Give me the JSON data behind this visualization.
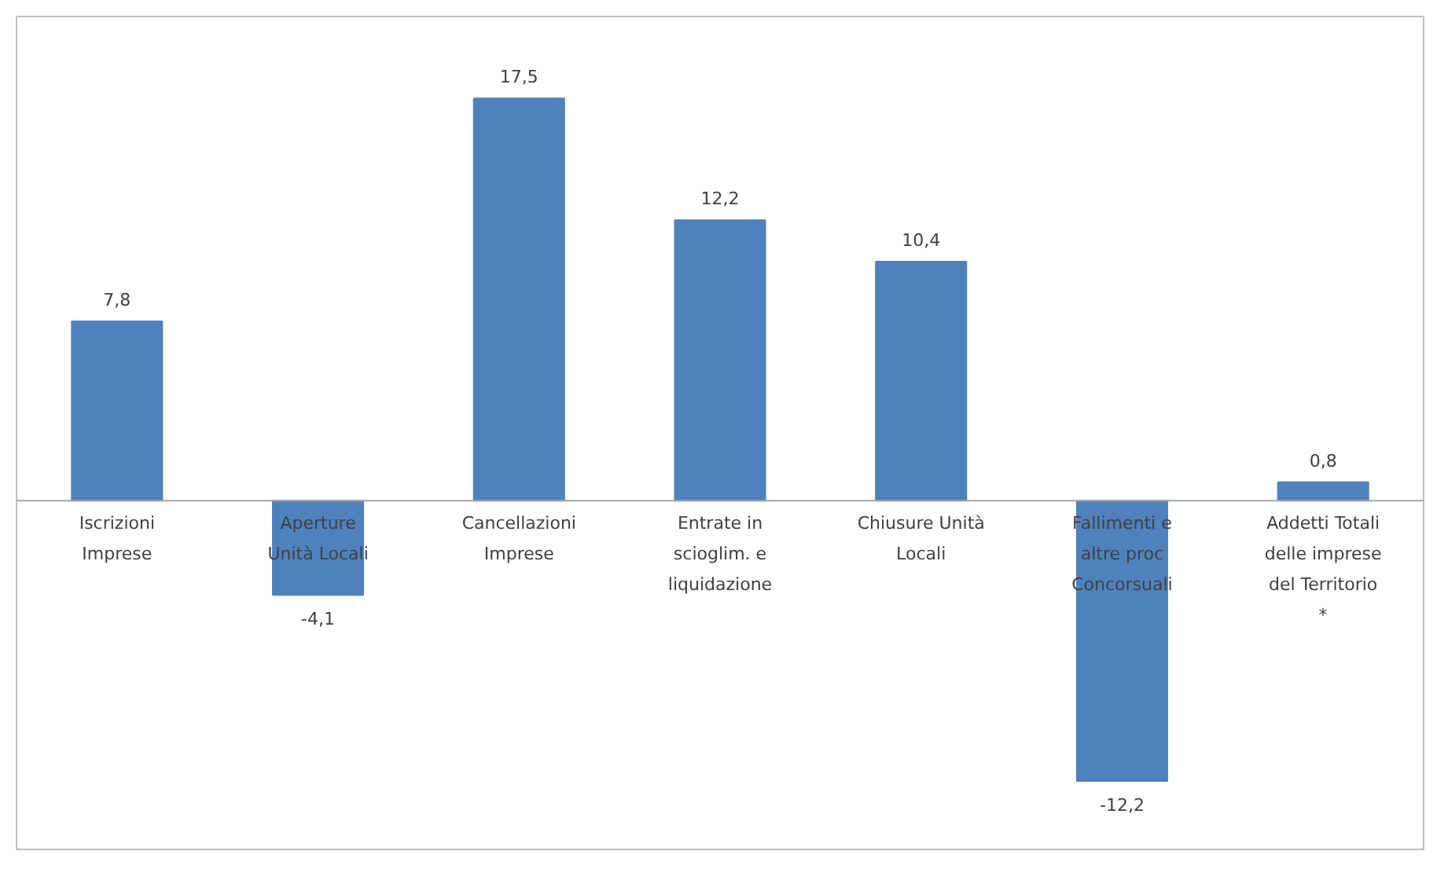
{
  "chart_data": {
    "type": "bar",
    "categories": [
      "Iscrizioni\nImprese",
      "Aperture\nUnità Locali",
      "Cancellazioni\nImprese",
      "Entrate in\nscioglim. e\nliquidazione",
      "Chiusure Unità\nLocali",
      "Fallimenti e\naltre proc\nConcorsuali",
      "Addetti Totali\ndelle imprese\ndel Territorio\n*"
    ],
    "values": [
      7.8,
      -4.1,
      17.5,
      12.2,
      10.4,
      -12.2,
      0.8
    ],
    "value_labels": [
      "7,8",
      "-4,1",
      "17,5",
      "12,2",
      "10,4",
      "-12,2",
      "0,8"
    ],
    "color": "#4f81bd"
  }
}
